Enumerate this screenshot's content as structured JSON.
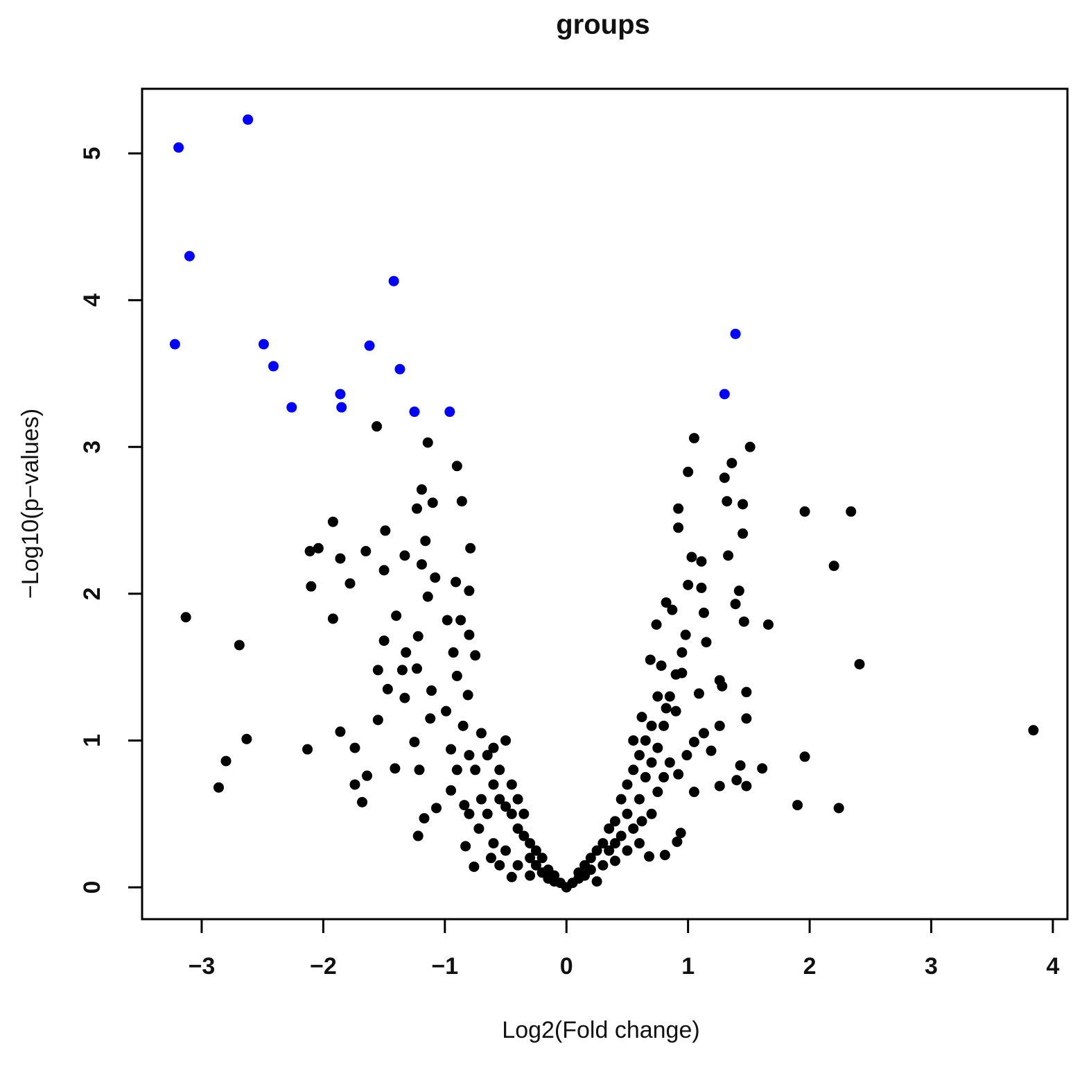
{
  "chart_data": {
    "type": "scatter",
    "title": "groups",
    "x_label": "Log2(Fold change)",
    "y_label": "−Log10(p−values)",
    "xlim": [
      -3.49,
      4.12
    ],
    "ylim": [
      -0.217,
      5.44
    ],
    "xticks": [
      {
        "value": -3,
        "label": "−3"
      },
      {
        "value": -2,
        "label": "−2"
      },
      {
        "value": -1,
        "label": "−1"
      },
      0,
      1,
      2,
      3,
      4
    ],
    "yticks": [
      0,
      1,
      2,
      3,
      4,
      5
    ],
    "series": [
      {
        "color": "#000000",
        "x": [
          -3.13,
          -2.69,
          -2.63,
          -2.8,
          -2.86,
          -2.13,
          -2.1,
          -2.11,
          -2.04,
          -1.92,
          -1.86,
          -1.92,
          -1.78,
          -1.86,
          -1.74,
          -1.74,
          -1.68,
          -1.64,
          -1.65,
          -1.56,
          -1.49,
          -1.5,
          -1.4,
          -1.55,
          -1.55,
          -1.5,
          -1.41,
          -1.47,
          -1.33,
          -1.33,
          -1.35,
          -1.32,
          -1.14,
          -1.19,
          -1.23,
          -1.1,
          -1.16,
          -1.19,
          -1.08,
          -1.14,
          -1.22,
          -1.23,
          -1.11,
          -1.12,
          -1.25,
          -1.21,
          -1.17,
          -1.22,
          -1.07,
          -0.9,
          -0.86,
          -0.79,
          -0.91,
          -0.8,
          -0.98,
          -0.87,
          -0.93,
          -0.8,
          -0.75,
          -0.9,
          -0.81,
          -0.99,
          -0.95,
          -0.9,
          -0.95,
          -0.84,
          -0.83,
          -0.76,
          -0.7,
          -0.65,
          -0.6,
          -0.55,
          -0.5,
          -0.6,
          -0.55,
          -0.5,
          -0.45,
          -0.45,
          -0.4,
          -0.4,
          -0.35,
          -0.35,
          -0.3,
          -0.3,
          -0.25,
          -0.25,
          -0.2,
          -0.2,
          -0.15,
          -0.15,
          -0.1,
          -0.1,
          -0.05,
          -0.65,
          -0.7,
          -0.75,
          -0.8,
          -0.72,
          -0.6,
          -0.5,
          -0.4,
          -0.45,
          -0.55,
          -0.3,
          -0.8,
          -0.85,
          -0.62,
          1.05,
          1.51,
          1.0,
          1.36,
          1.3,
          1.32,
          1.45,
          0.92,
          0.92,
          1.45,
          1.03,
          1.11,
          1.33,
          1.0,
          1.11,
          1.42,
          0.82,
          0.87,
          1.13,
          1.39,
          1.46,
          1.66,
          0.74,
          0.98,
          1.15,
          0.78,
          0.69,
          0.95,
          1.26,
          1.28,
          1.48,
          1.09,
          0.82,
          0.62,
          1.26,
          1.48,
          1.13,
          1.05,
          1.19,
          0.99,
          1.61,
          1.43,
          1.4,
          1.48,
          1.26,
          1.05,
          0.92,
          0.94,
          0.91,
          0.81,
          0.68,
          1.96,
          2.34,
          2.2,
          2.41,
          3.84,
          1.96,
          1.9,
          2.24,
          0.05,
          0.1,
          0.1,
          0.15,
          0.15,
          0.2,
          0.2,
          0.25,
          0.25,
          0.3,
          0.3,
          0.35,
          0.35,
          0.4,
          0.4,
          0.45,
          0.45,
          0.5,
          0.5,
          0.55,
          0.55,
          0.55,
          0.6,
          0.6,
          0.65,
          0.65,
          0.7,
          0.7,
          0.75,
          0.75,
          0.8,
          0.8,
          0.85,
          0.85,
          0.9,
          0.6,
          0.5,
          0.4,
          0.7,
          0.75,
          0.9,
          0.95,
          0.62,
          0
        ],
        "values": [
          1.84,
          1.65,
          1.01,
          0.86,
          0.68,
          0.94,
          2.05,
          2.29,
          2.31,
          2.49,
          2.24,
          1.83,
          2.07,
          1.06,
          0.95,
          0.7,
          0.58,
          0.76,
          2.29,
          3.14,
          2.43,
          2.16,
          1.85,
          1.48,
          1.14,
          1.68,
          0.81,
          1.35,
          2.26,
          1.29,
          1.48,
          1.6,
          3.03,
          2.71,
          2.58,
          2.62,
          2.36,
          2.2,
          2.11,
          1.98,
          1.71,
          1.49,
          1.34,
          1.15,
          0.99,
          0.8,
          0.47,
          0.35,
          0.54,
          2.87,
          2.63,
          2.31,
          2.08,
          2.02,
          1.82,
          1.82,
          1.6,
          1.72,
          1.58,
          1.44,
          1.31,
          1.2,
          0.94,
          0.8,
          0.66,
          0.56,
          0.28,
          0.14,
          1.05,
          0.9,
          0.95,
          0.8,
          1.0,
          0.7,
          0.6,
          0.55,
          0.5,
          0.7,
          0.6,
          0.4,
          0.35,
          0.5,
          0.3,
          0.2,
          0.25,
          0.15,
          0.2,
          0.1,
          0.12,
          0.06,
          0.08,
          0.04,
          0.03,
          0.5,
          0.6,
          0.8,
          0.9,
          0.4,
          0.3,
          0.25,
          0.15,
          0.07,
          0.15,
          0.08,
          0.5,
          1.1,
          0.2,
          3.06,
          3.0,
          2.83,
          2.89,
          2.79,
          2.63,
          2.61,
          2.58,
          2.45,
          2.41,
          2.25,
          2.22,
          2.26,
          2.06,
          2.04,
          2.02,
          1.94,
          1.89,
          1.87,
          1.93,
          1.81,
          1.79,
          1.79,
          1.72,
          1.67,
          1.51,
          1.55,
          1.46,
          1.41,
          1.37,
          1.33,
          1.32,
          1.22,
          1.16,
          1.1,
          1.15,
          1.05,
          0.99,
          0.93,
          0.9,
          0.81,
          0.83,
          0.73,
          0.69,
          0.69,
          0.65,
          0.77,
          0.37,
          0.31,
          0.22,
          0.21,
          2.56,
          2.56,
          2.19,
          1.52,
          1.07,
          0.89,
          0.56,
          0.54,
          0.03,
          0.06,
          0.1,
          0.08,
          0.15,
          0.12,
          0.2,
          0.04,
          0.25,
          0.15,
          0.3,
          0.25,
          0.4,
          0.3,
          0.45,
          0.35,
          0.6,
          0.5,
          0.7,
          0.4,
          0.8,
          1.0,
          0.6,
          0.9,
          0.75,
          1.0,
          0.5,
          0.85,
          0.95,
          0.65,
          1.1,
          0.75,
          1.3,
          0.85,
          1.2,
          0.3,
          0.25,
          0.18,
          1.1,
          1.3,
          1.45,
          1.6,
          0.45,
          0
        ]
      },
      {
        "color": "#0000ff",
        "x": [
          -3.19,
          -2.62,
          -3.1,
          -1.42,
          -3.22,
          -2.49,
          -2.41,
          -1.62,
          -1.37,
          -1.86,
          -1.85,
          -2.26,
          -1.25,
          -0.96,
          1.39,
          1.3
        ],
        "values": [
          5.04,
          5.23,
          4.3,
          4.13,
          3.7,
          3.7,
          3.55,
          3.69,
          3.53,
          3.36,
          3.27,
          3.27,
          3.24,
          3.24,
          3.77,
          3.36
        ]
      }
    ]
  }
}
